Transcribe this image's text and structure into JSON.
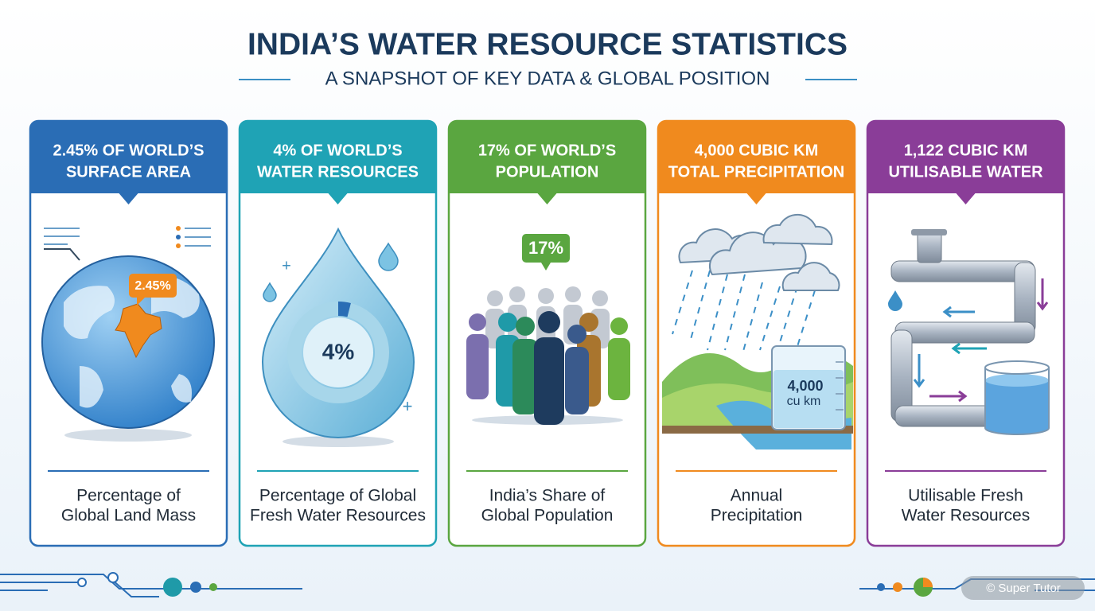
{
  "header": {
    "title": "INDIA’S WATER RESOURCE STATISTICS",
    "subtitle": "A SNAPSHOT OF KEY DATA & GLOBAL POSITION"
  },
  "cards": [
    {
      "headline": [
        "2.45% OF WORLD’S",
        "SURFACE AREA"
      ],
      "badge": [
        "2.45%"
      ],
      "caption": [
        "Percentage of",
        "Global Land Mass"
      ]
    },
    {
      "headline": [
        "4% OF WORLD’S",
        "WATER RESOURCES"
      ],
      "badge": [
        "4%"
      ],
      "caption": [
        "Percentage of Global",
        "Fresh Water Resources"
      ]
    },
    {
      "headline": [
        "17% OF WORLD’S",
        "POPULATION"
      ],
      "badge": [
        "17%"
      ],
      "caption": [
        "India’s Share of",
        "Global Population"
      ]
    },
    {
      "headline": [
        "4,000 CUBIC KM",
        "TOTAL PRECIPITATION"
      ],
      "badge": [
        "4,000",
        "cu km"
      ],
      "caption": [
        "Annual",
        "Precipitation"
      ]
    },
    {
      "headline": [
        "1,122 CUBIC KM",
        "UTILISABLE WATER"
      ],
      "badge": [],
      "caption": [
        "Utilisable Fresh",
        "Water Resources"
      ]
    }
  ],
  "footer": {
    "watermark": "© Super Tutor"
  }
}
